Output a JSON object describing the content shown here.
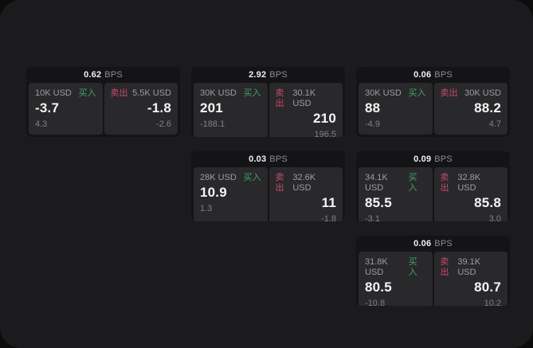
{
  "labels": {
    "bps": "BPS",
    "buy": "买入",
    "sell": "卖出"
  },
  "colors": {
    "buy": "#3fa265",
    "sell": "#c9486b",
    "panel_bg": "#1b1b1d",
    "card_bg": "#141416",
    "pane_bg": "#29292c"
  },
  "cards": [
    {
      "bps": "0.62",
      "buy": {
        "amount": "10K USD",
        "price": "-3.7",
        "delta": "4.3"
      },
      "sell": {
        "amount": "5.5K USD",
        "price": "-1.8",
        "delta": "-2.6"
      }
    },
    {
      "bps": "2.92",
      "buy": {
        "amount": "30K USD",
        "price": "201",
        "delta": "-188.1"
      },
      "sell": {
        "amount": "30.1K USD",
        "price": "210",
        "delta": "196.5"
      }
    },
    {
      "bps": "0.06",
      "buy": {
        "amount": "30K USD",
        "price": "88",
        "delta": "-4.9"
      },
      "sell": {
        "amount": "30K USD",
        "price": "88.2",
        "delta": "4.7"
      }
    },
    {
      "bps": "0.03",
      "buy": {
        "amount": "28K USD",
        "price": "10.9",
        "delta": "1.3"
      },
      "sell": {
        "amount": "32.6K USD",
        "price": "11",
        "delta": "-1.8"
      }
    },
    {
      "bps": "0.09",
      "buy": {
        "amount": "34.1K USD",
        "price": "85.5",
        "delta": "-3.1"
      },
      "sell": {
        "amount": "32.8K USD",
        "price": "85.8",
        "delta": "3.0"
      }
    },
    {
      "bps": "0.06",
      "buy": {
        "amount": "31.8K USD",
        "price": "80.5",
        "delta": "-10.8"
      },
      "sell": {
        "amount": "39.1K USD",
        "price": "80.7",
        "delta": "10.2"
      }
    }
  ]
}
